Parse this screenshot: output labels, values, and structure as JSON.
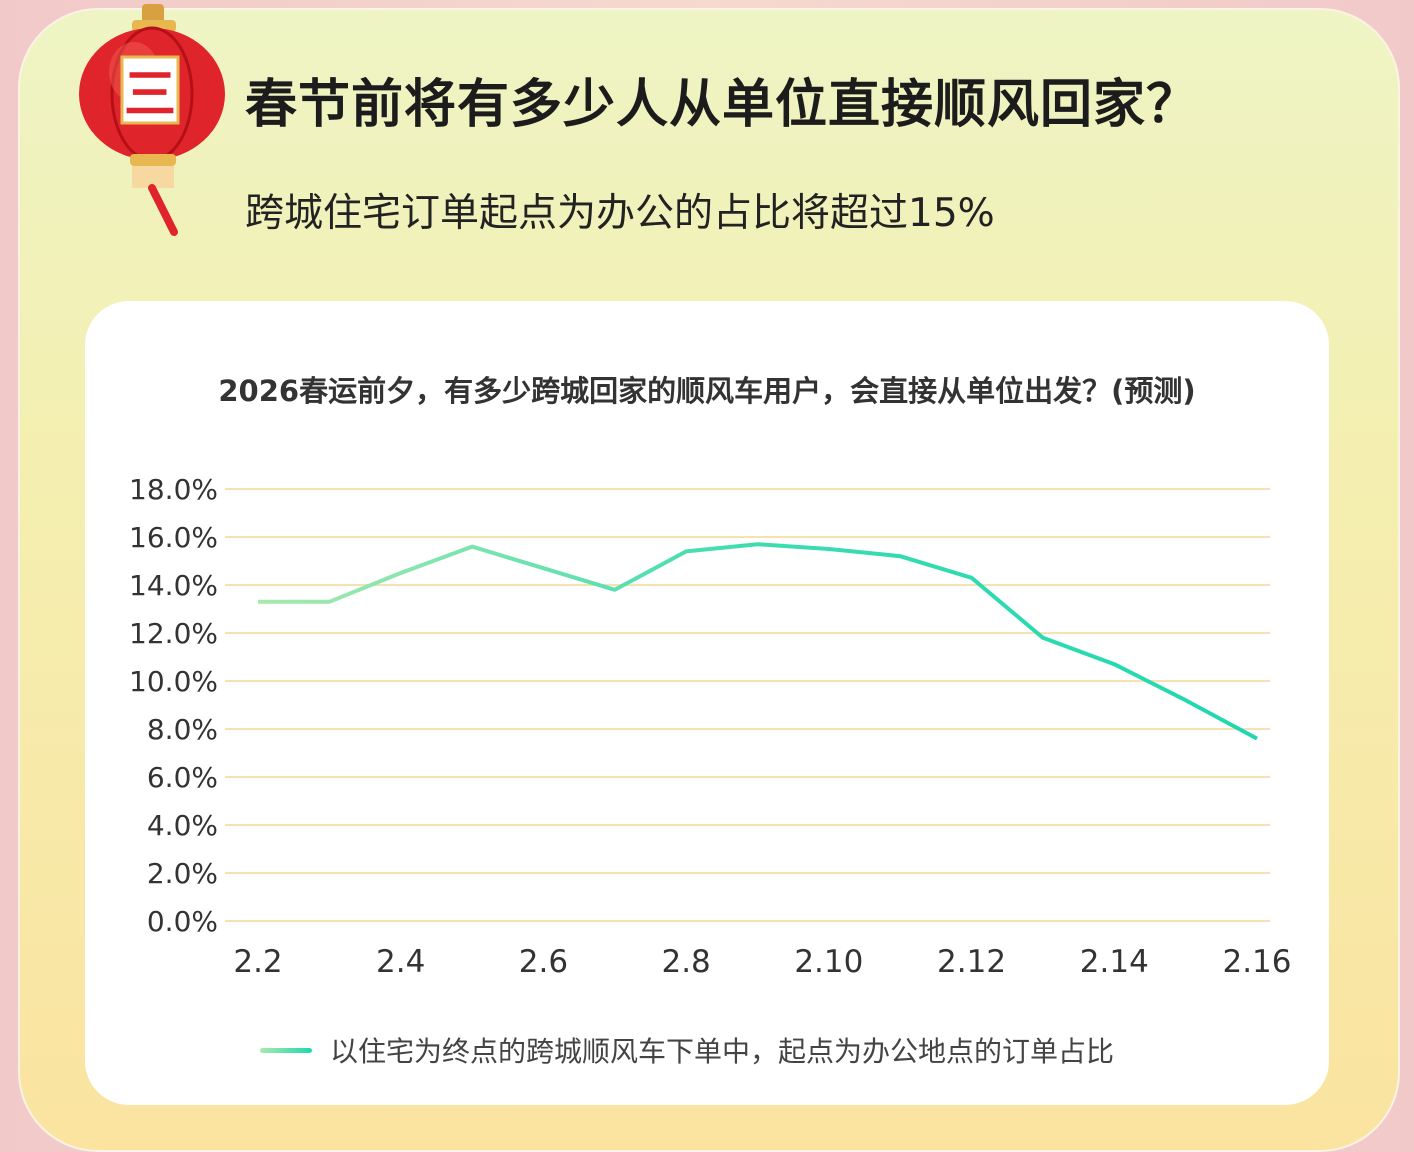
{
  "header": {
    "title": "春节前将有多少人从单位直接顺风回家？",
    "subtitle": "跨城住宅订单起点为办公的占比将超过15%",
    "lantern_text": "三"
  },
  "colors": {
    "line_start": "#a8e9ae",
    "line_end": "#1fd8b0",
    "grid": "#f6e2b0"
  },
  "chart_data": {
    "type": "line",
    "title": "2026春运前夕，有多少跨城回家的顺风车用户，会直接从单位出发？(预测)",
    "xlabel": "",
    "ylabel": "",
    "x": [
      "2.2",
      "2.3",
      "2.4",
      "2.5",
      "2.6",
      "2.7",
      "2.8",
      "2.9",
      "2.10",
      "2.11",
      "2.12",
      "2.13",
      "2.14",
      "2.15",
      "2.16"
    ],
    "x_tick_labels": [
      "2.2",
      "2.4",
      "2.6",
      "2.8",
      "2.10",
      "2.12",
      "2.14",
      "2.16"
    ],
    "y_tick_labels": [
      "0.0%",
      "2.0%",
      "4.0%",
      "6.0%",
      "8.0%",
      "10.0%",
      "12.0%",
      "14.0%",
      "16.0%",
      "18.0%"
    ],
    "ylim": [
      0,
      18
    ],
    "grid": true,
    "legend_position": "bottom",
    "series": [
      {
        "name": "以住宅为终点的跨城顺风车下单中，起点为办公地点的订单占比",
        "values": [
          13.3,
          13.3,
          14.5,
          15.6,
          14.7,
          13.8,
          15.4,
          15.7,
          15.5,
          15.2,
          14.3,
          11.8,
          10.7,
          9.2,
          7.6
        ]
      }
    ]
  }
}
